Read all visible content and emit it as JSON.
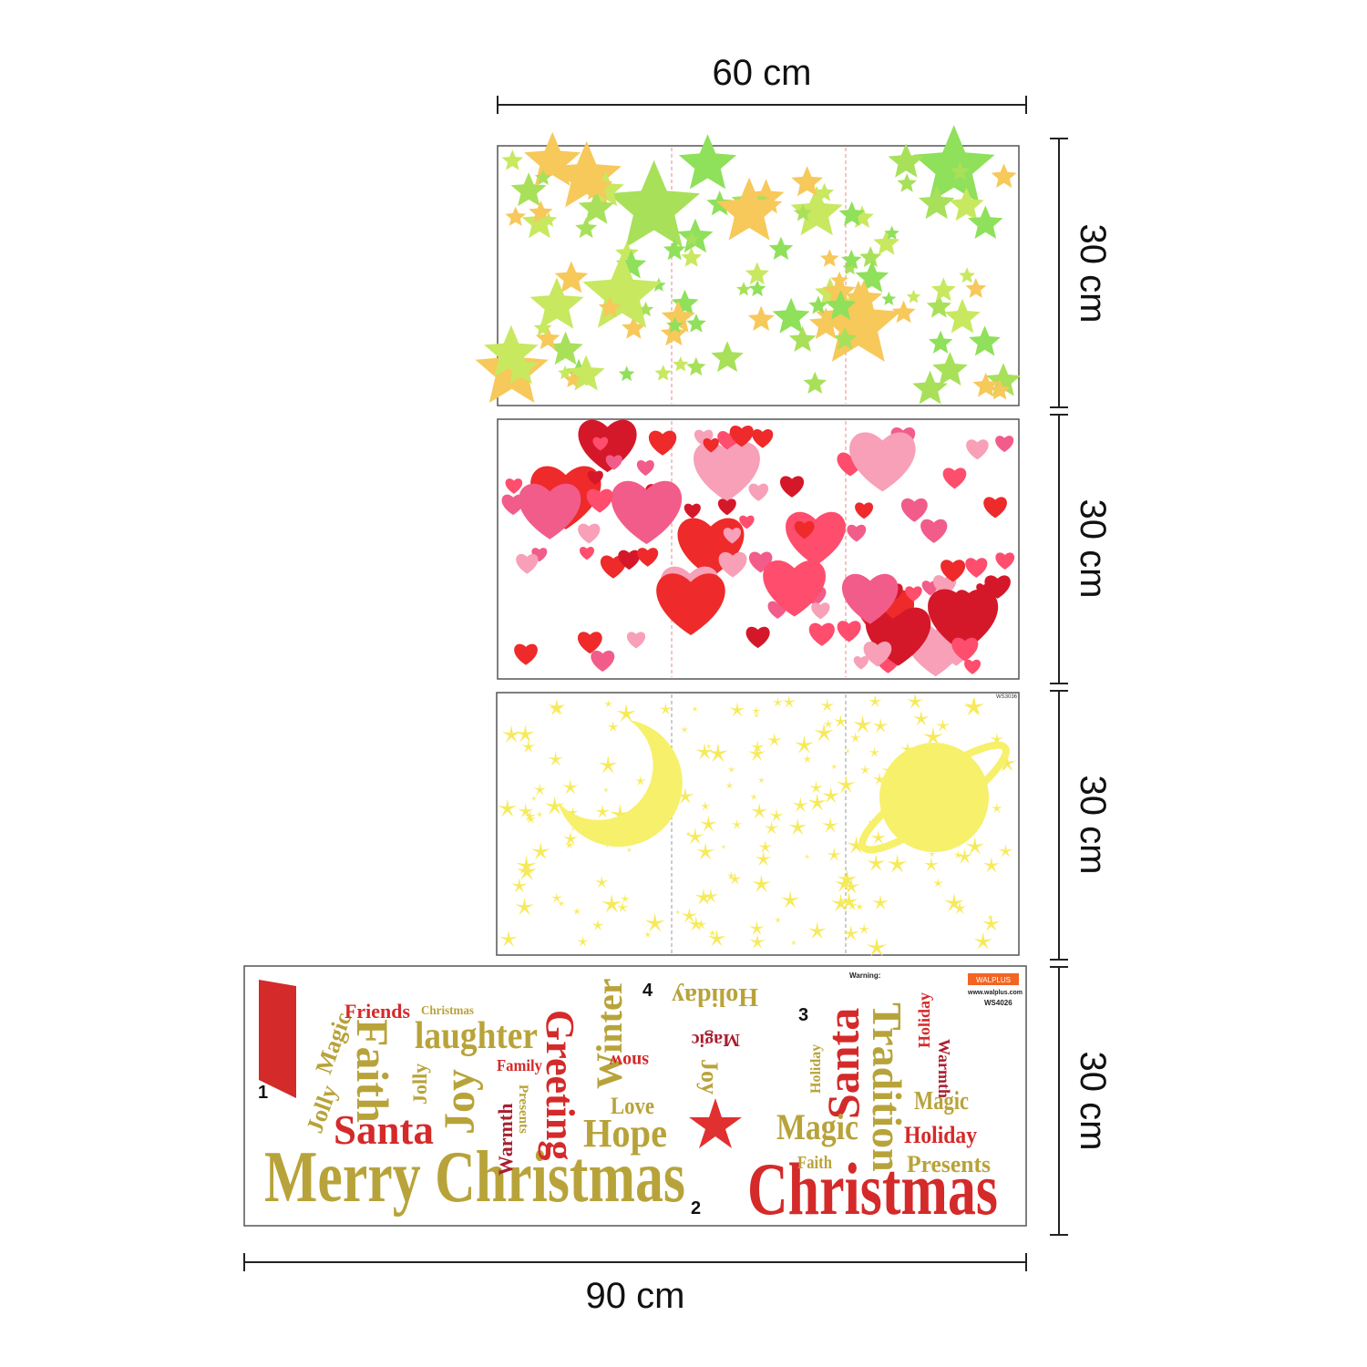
{
  "dimensions": {
    "top": "60 cm",
    "right": [
      "30 cm",
      "30 cm",
      "30 cm",
      "30 cm"
    ],
    "bottom": "90 cm"
  },
  "panel_codes": {
    "moon": "WS3036",
    "christmas": "WS4026"
  },
  "christmas_panel": {
    "labels": [
      "Warning:",
      "WALPLUS",
      "www.walplus.com"
    ],
    "numbers": [
      "1",
      "2",
      "3",
      "4"
    ],
    "words": [
      "Merry Christmas",
      "Christmas",
      "Santa",
      "Jolly",
      "Magic",
      "Friends",
      "Christmas",
      "laughter",
      "Faith",
      "Jolly",
      "Joy",
      "Family",
      "Warmth",
      "Presents",
      "Greeting",
      "Winter",
      "snow",
      "Love",
      "Hope",
      "Holiday",
      "Magic",
      "Joy",
      "Santa",
      "Holiday",
      "Magic",
      "Faith",
      "Tradition",
      "Holiday",
      "Warmth",
      "Magic",
      "Holiday",
      "Presents"
    ]
  }
}
